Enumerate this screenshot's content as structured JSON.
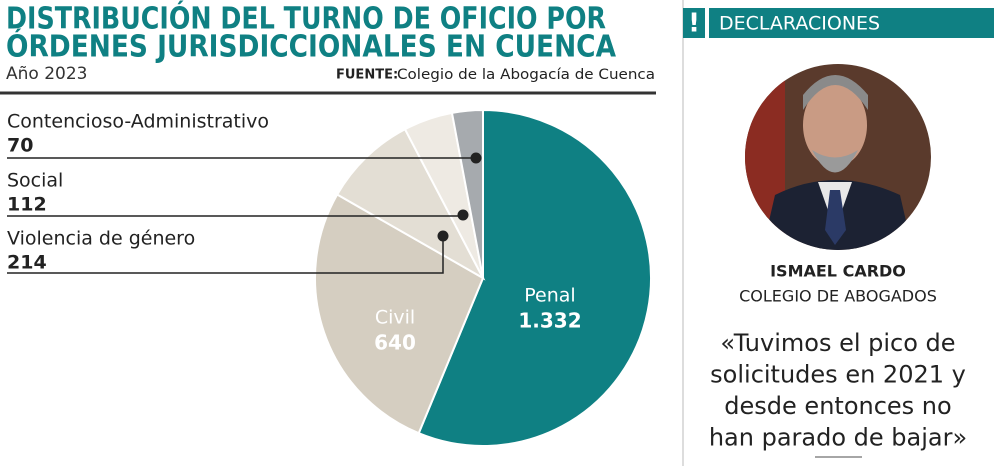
{
  "chart_data": {
    "type": "pie",
    "title": [
      "DISTRIBUCIÓN DEL TURNO DE OFICIO POR",
      "ÓRDENES JURISDICCIONALES EN CUENCA"
    ],
    "subtitle": "Año 2023",
    "source_label": "FUENTE:",
    "source": "Colegio de la Abogacía de Cuenca",
    "categories": [
      "Penal",
      "Civil",
      "Violencia de género",
      "Social",
      "Contencioso-Administrativo"
    ],
    "values": [
      1332,
      640,
      214,
      112,
      70
    ],
    "value_labels": [
      "1.332",
      "640",
      "214",
      "112",
      "70"
    ],
    "colors": [
      "#0f8083",
      "#d5cec1",
      "#e3ded4",
      "#eeeae3",
      "#a6aaae"
    ]
  },
  "sidebar": {
    "header": "DECLARACIONES",
    "icon": "!",
    "name": "ISMAEL CARDO",
    "role": "COLEGIO DE ABOGADOS",
    "quote": [
      "«Tuvimos el pico de",
      "solicitudes en 2021 y",
      "desde entonces no",
      "han parado de bajar»"
    ]
  }
}
